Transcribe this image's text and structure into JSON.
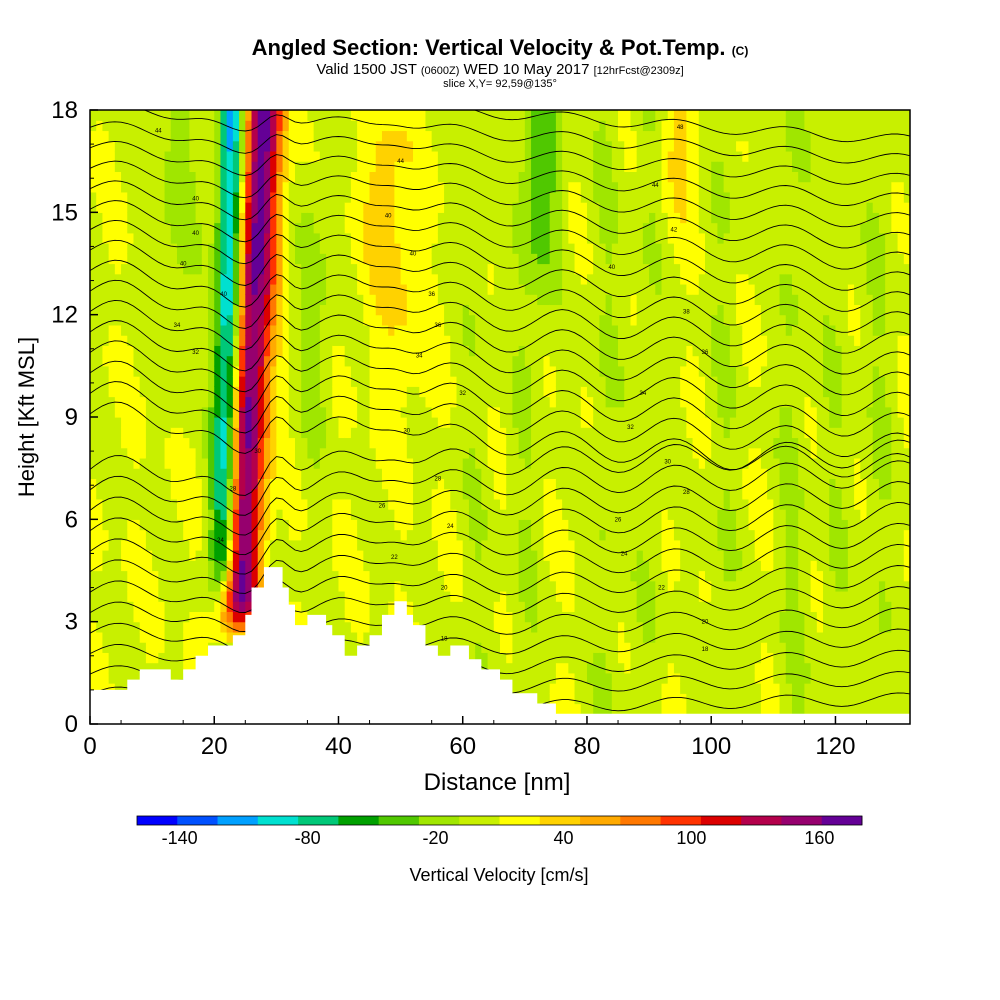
{
  "header": {
    "title": "Angled Section: Vertical Velocity & Pot.Temp.",
    "title_unit": "(C)",
    "valid_prefix": "Valid 1500 JST",
    "valid_utc": "(0600Z)",
    "valid_date": "WED 10 May 2017",
    "forecast": "[12hrFcst@2309z]",
    "slice": "slice X,Y= 92,59@135°"
  },
  "chart_data": {
    "type": "heatmap",
    "xlabel": "Distance [nm]",
    "ylabel": "Height [Kft MSL]",
    "xlim": [
      0,
      132
    ],
    "ylim": [
      0,
      18
    ],
    "x_ticks": [
      0,
      20,
      40,
      60,
      80,
      100,
      120
    ],
    "y_ticks": [
      0,
      3,
      6,
      9,
      12,
      15,
      18
    ],
    "colorbar": {
      "label": "Vertical Velocity [cm/s]",
      "range": [
        -160,
        180
      ],
      "step": 20,
      "tick_values": [
        -140,
        -80,
        -20,
        40,
        100,
        160
      ],
      "tick_labels": [
        "-140",
        "-80",
        "-20",
        "40",
        "100",
        "160"
      ],
      "colors": [
        "#0000ff",
        "#0050ff",
        "#00a0ff",
        "#00e0d0",
        "#00c878",
        "#00a000",
        "#50c800",
        "#a0e600",
        "#c8f000",
        "#ffff00",
        "#ffd200",
        "#ffaa00",
        "#ff7800",
        "#ff3200",
        "#dc0000",
        "#b4004b",
        "#96006e",
        "#640096"
      ]
    },
    "features": [
      {
        "name": "updraft",
        "center_x_at_base": 23,
        "center_x_at_top": 28,
        "peak_cm_s": 170
      },
      {
        "name": "downdraft",
        "center_x_at_base": 21,
        "center_x_at_top": 23,
        "peak_cm_s": -140
      }
    ],
    "terrain_nm_kft": [
      [
        0,
        1
      ],
      [
        6,
        1
      ],
      [
        6,
        1.3
      ],
      [
        8,
        1.3
      ],
      [
        8,
        1.6
      ],
      [
        13,
        1.6
      ],
      [
        13,
        1.3
      ],
      [
        15,
        1.3
      ],
      [
        15,
        1.6
      ],
      [
        17,
        1.6
      ],
      [
        17,
        2
      ],
      [
        19,
        2
      ],
      [
        19,
        2.3
      ],
      [
        23,
        2.3
      ],
      [
        23,
        2.6
      ],
      [
        25,
        2.6
      ],
      [
        25,
        3.2
      ],
      [
        26,
        3.2
      ],
      [
        26,
        4
      ],
      [
        28,
        4
      ],
      [
        28,
        4.6
      ],
      [
        31,
        4.6
      ],
      [
        31,
        4
      ],
      [
        32,
        4
      ],
      [
        32,
        3.5
      ],
      [
        33,
        3.5
      ],
      [
        33,
        2.9
      ],
      [
        35,
        2.9
      ],
      [
        35,
        3.2
      ],
      [
        38,
        3.2
      ],
      [
        38,
        2.9
      ],
      [
        39,
        2.9
      ],
      [
        39,
        2.6
      ],
      [
        41,
        2.6
      ],
      [
        41,
        2
      ],
      [
        43,
        2
      ],
      [
        43,
        2.3
      ],
      [
        45,
        2.3
      ],
      [
        45,
        2.6
      ],
      [
        47,
        2.6
      ],
      [
        47,
        3.2
      ],
      [
        49,
        3.2
      ],
      [
        49,
        3.6
      ],
      [
        51,
        3.6
      ],
      [
        51,
        3.2
      ],
      [
        52,
        3.2
      ],
      [
        52,
        2.9
      ],
      [
        54,
        2.9
      ],
      [
        54,
        2.3
      ],
      [
        56,
        2.3
      ],
      [
        56,
        2
      ],
      [
        58,
        2
      ],
      [
        58,
        2.3
      ],
      [
        61,
        2.3
      ],
      [
        61,
        1.9
      ],
      [
        63,
        1.9
      ],
      [
        63,
        1.6
      ],
      [
        66,
        1.6
      ],
      [
        66,
        1.3
      ],
      [
        68,
        1.3
      ],
      [
        68,
        0.9
      ],
      [
        72,
        0.9
      ],
      [
        72,
        0.6
      ],
      [
        75,
        0.6
      ],
      [
        75,
        0.3
      ],
      [
        132,
        0.3
      ]
    ],
    "isentrope_labels": [
      {
        "x": 11,
        "y": 17.4,
        "text": "44"
      },
      {
        "x": 17,
        "y": 15.4,
        "text": "40"
      },
      {
        "x": 17,
        "y": 14.4,
        "text": "40"
      },
      {
        "x": 15,
        "y": 13.5,
        "text": "40"
      },
      {
        "x": 21.5,
        "y": 12.6,
        "text": "40"
      },
      {
        "x": 14,
        "y": 11.7,
        "text": "34"
      },
      {
        "x": 17,
        "y": 10.9,
        "text": "32"
      },
      {
        "x": 27,
        "y": 8.0,
        "text": "30"
      },
      {
        "x": 23,
        "y": 6.9,
        "text": "28"
      },
      {
        "x": 21,
        "y": 5.4,
        "text": "24"
      },
      {
        "x": 50,
        "y": 16.5,
        "text": "44"
      },
      {
        "x": 48,
        "y": 14.9,
        "text": "40"
      },
      {
        "x": 52,
        "y": 13.8,
        "text": "40"
      },
      {
        "x": 55,
        "y": 12.6,
        "text": "36"
      },
      {
        "x": 56,
        "y": 11.7,
        "text": "36"
      },
      {
        "x": 53,
        "y": 10.8,
        "text": "34"
      },
      {
        "x": 60,
        "y": 9.7,
        "text": "32"
      },
      {
        "x": 51,
        "y": 8.6,
        "text": "30"
      },
      {
        "x": 56,
        "y": 7.2,
        "text": "28"
      },
      {
        "x": 47,
        "y": 6.4,
        "text": "26"
      },
      {
        "x": 58,
        "y": 5.8,
        "text": "24"
      },
      {
        "x": 49,
        "y": 4.9,
        "text": "22"
      },
      {
        "x": 57,
        "y": 4.0,
        "text": "20"
      },
      {
        "x": 57,
        "y": 2.5,
        "text": "18"
      },
      {
        "x": 95,
        "y": 17.5,
        "text": "48"
      },
      {
        "x": 91,
        "y": 15.8,
        "text": "44"
      },
      {
        "x": 94,
        "y": 14.5,
        "text": "42"
      },
      {
        "x": 84,
        "y": 13.4,
        "text": "40"
      },
      {
        "x": 96,
        "y": 12.1,
        "text": "38"
      },
      {
        "x": 99,
        "y": 10.9,
        "text": "36"
      },
      {
        "x": 89,
        "y": 9.7,
        "text": "34"
      },
      {
        "x": 87,
        "y": 8.7,
        "text": "32"
      },
      {
        "x": 93,
        "y": 7.7,
        "text": "30"
      },
      {
        "x": 96,
        "y": 6.8,
        "text": "28"
      },
      {
        "x": 85,
        "y": 6.0,
        "text": "26"
      },
      {
        "x": 86,
        "y": 5.0,
        "text": "24"
      },
      {
        "x": 92,
        "y": 4.0,
        "text": "22"
      },
      {
        "x": 99,
        "y": 3.0,
        "text": "20"
      },
      {
        "x": 99,
        "y": 2.2,
        "text": "18"
      }
    ]
  }
}
